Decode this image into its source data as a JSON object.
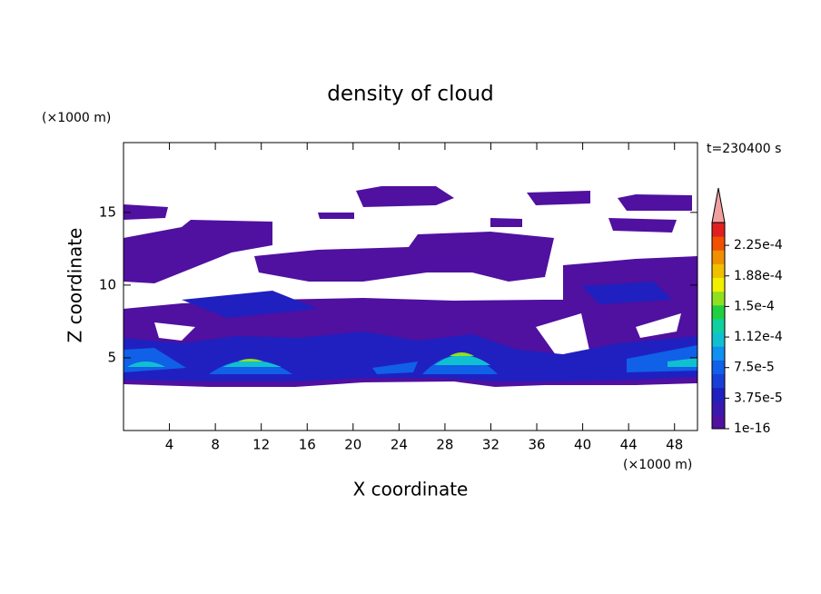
{
  "chart_data": {
    "type": "contour",
    "title": "density of cloud",
    "x_label": "X coordinate",
    "y_label": "Z coordinate",
    "x_unit": "(×1000 m)",
    "y_unit": "(×1000 m)",
    "annotation": "t=230400 s",
    "xlim": [
      0,
      50
    ],
    "xticks": [
      4,
      8,
      12,
      16,
      20,
      24,
      28,
      32,
      36,
      40,
      44,
      48
    ],
    "ylim": [
      0,
      19.8
    ],
    "yticks": [
      5,
      10,
      15
    ],
    "colorbar": {
      "clim": [
        1e-16,
        0.000253
      ],
      "ticks": [
        1e-16,
        {
          "value": 3.75e-05,
          "label": "3.75e-5"
        },
        {
          "value": 7.5e-05,
          "label": "7.5e-5"
        },
        {
          "value": 0.0001125,
          "label": "1.12e-4"
        },
        {
          "value": 0.00015,
          "label": "1.5e-4"
        },
        {
          "value": 0.0001875,
          "label": "1.88e-4"
        },
        {
          "value": 0.000225,
          "label": "2.25e-4"
        }
      ],
      "colors": [
        "#5010a0",
        "#3a18b0",
        "#2020c0",
        "#1840d8",
        "#1060e8",
        "#1090f0",
        "#10c0d0",
        "#10d0a0",
        "#20d040",
        "#90e020",
        "#f0f000",
        "#f0c000",
        "#f09000",
        "#f05000",
        "#e02020"
      ],
      "extend_color": "#f0a0a0"
    }
  }
}
